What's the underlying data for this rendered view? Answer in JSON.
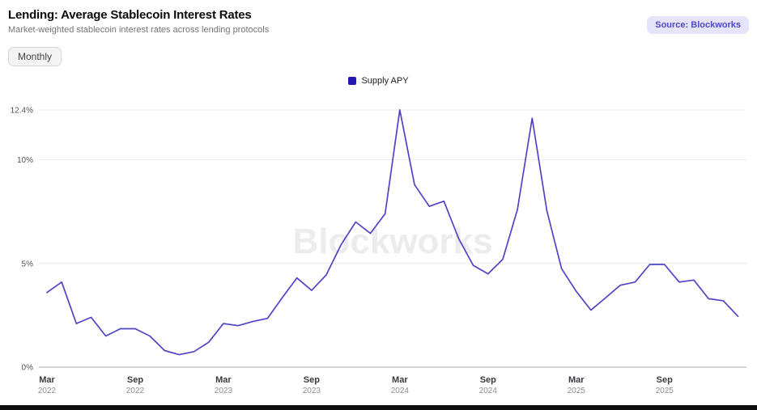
{
  "header": {
    "title": "Lending: Average Stablecoin Interest Rates",
    "subtitle": "Market-weighted stablecoin interest rates across lending protocols",
    "frequency_button": "Monthly",
    "source_badge": "Source: Blockworks"
  },
  "legend": {
    "items": [
      {
        "label": "Supply APY",
        "color": "#2217b2"
      }
    ]
  },
  "watermark": "Blockworks",
  "colors": {
    "line": "#4f44c6",
    "legend_swatch": "#2217b2",
    "badge_bg": "#e5e4fb",
    "badge_text": "#4e49cd",
    "gridline": "#ececef",
    "axis_line": "#c6c6cb",
    "watermark_text": "#ececee"
  },
  "chart_data": {
    "type": "line",
    "title": "Lending: Average Stablecoin Interest Rates",
    "subtitle": "Market-weighted stablecoin interest rates across lending protocols",
    "ylabel": "",
    "xlabel": "",
    "ylim": [
      0,
      12.4
    ],
    "grid": "horizontal",
    "legend_position": "top-center",
    "y_ticks": [
      {
        "value": 0,
        "label": "0%"
      },
      {
        "value": 5,
        "label": "5%"
      },
      {
        "value": 10,
        "label": "10%"
      },
      {
        "value": 12.4,
        "label": "12.4%"
      }
    ],
    "x_ticks": [
      {
        "index": 0,
        "month": "Mar",
        "year": "2022"
      },
      {
        "index": 6,
        "month": "Sep",
        "year": "2022"
      },
      {
        "index": 12,
        "month": "Mar",
        "year": "2023"
      },
      {
        "index": 18,
        "month": "Sep",
        "year": "2023"
      },
      {
        "index": 24,
        "month": "Mar",
        "year": "2024"
      },
      {
        "index": 30,
        "month": "Sep",
        "year": "2024"
      },
      {
        "index": 36,
        "month": "Mar",
        "year": "2025"
      },
      {
        "index": 42,
        "month": "Sep",
        "year": "2025"
      }
    ],
    "categories": [
      "Mar 2022",
      "Apr 2022",
      "May 2022",
      "Jun 2022",
      "Jul 2022",
      "Aug 2022",
      "Sep 2022",
      "Oct 2022",
      "Nov 2022",
      "Dec 2022",
      "Jan 2023",
      "Feb 2023",
      "Mar 2023",
      "Apr 2023",
      "May 2023",
      "Jun 2023",
      "Jul 2023",
      "Aug 2023",
      "Sep 2023",
      "Oct 2023",
      "Nov 2023",
      "Dec 2023",
      "Jan 2024",
      "Feb 2024",
      "Mar 2024",
      "Apr 2024",
      "May 2024",
      "Jun 2024",
      "Jul 2024",
      "Aug 2024",
      "Sep 2024",
      "Oct 2024",
      "Nov 2024",
      "Dec 2024",
      "Jan 2025",
      "Feb 2025",
      "Mar 2025",
      "Apr 2025",
      "May 2025",
      "Jun 2025",
      "Jul 2025",
      "Aug 2025",
      "Sep 2025",
      "Oct 2025",
      "Nov 2025",
      "Dec 2025",
      "Jan 2026",
      "Feb 2026"
    ],
    "series": [
      {
        "name": "Supply APY",
        "color": "#4f44c6",
        "values": [
          3.6,
          4.1,
          2.1,
          2.4,
          1.5,
          1.85,
          1.85,
          1.5,
          0.8,
          0.6,
          0.75,
          1.2,
          2.1,
          2.0,
          2.2,
          2.35,
          3.35,
          4.3,
          3.7,
          4.45,
          5.9,
          7.0,
          6.45,
          7.4,
          12.4,
          8.8,
          7.75,
          8.0,
          6.2,
          4.9,
          4.5,
          5.2,
          7.6,
          12.0,
          7.55,
          4.75,
          3.65,
          2.75,
          3.35,
          3.95,
          4.1,
          4.95,
          4.95,
          4.1,
          4.2,
          3.3,
          3.2,
          2.45
        ]
      }
    ]
  }
}
